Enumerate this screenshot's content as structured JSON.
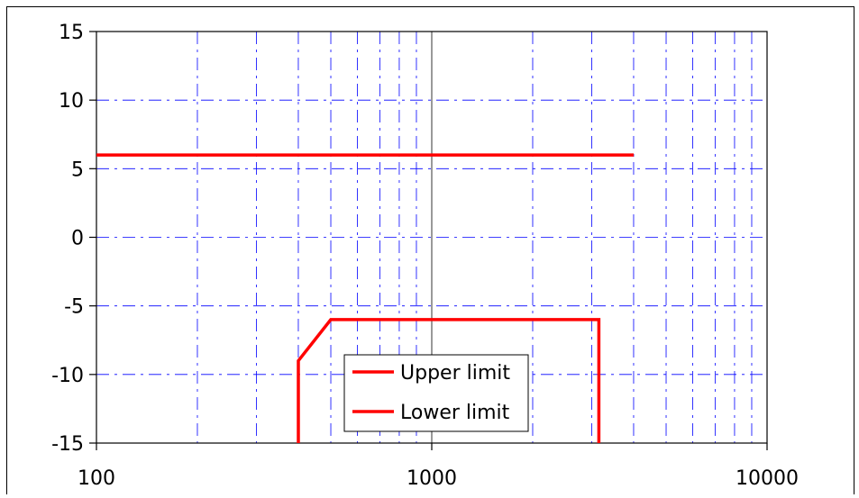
{
  "chart_data": {
    "type": "line",
    "title": "",
    "xlabel": "",
    "ylabel": "",
    "x_scale": "log",
    "xlim": [
      100,
      10000
    ],
    "ylim": [
      -15,
      15
    ],
    "x_ticks": [
      100,
      1000,
      10000
    ],
    "x_tick_labels": [
      "100",
      "1000",
      "10000"
    ],
    "y_ticks": [
      15,
      10,
      5,
      0,
      -5,
      -10,
      -15
    ],
    "y_tick_labels": [
      "15",
      "10",
      "5",
      "0",
      "-5",
      "-10",
      "-15"
    ],
    "grid": true,
    "legend_position": "bottom-center",
    "series": [
      {
        "name": "Upper limit",
        "color": "#ff0000",
        "points": [
          [
            100,
            6
          ],
          [
            4000,
            6
          ]
        ]
      },
      {
        "name": "Lower limit",
        "color": "#ff0000",
        "points": [
          [
            400,
            -15
          ],
          [
            400,
            -9
          ],
          [
            500,
            -6
          ],
          [
            3150,
            -6
          ],
          [
            3150,
            -15
          ]
        ]
      }
    ],
    "colors": {
      "grid": "#0000ff",
      "axis": "#000000",
      "series": "#ff0000"
    }
  }
}
